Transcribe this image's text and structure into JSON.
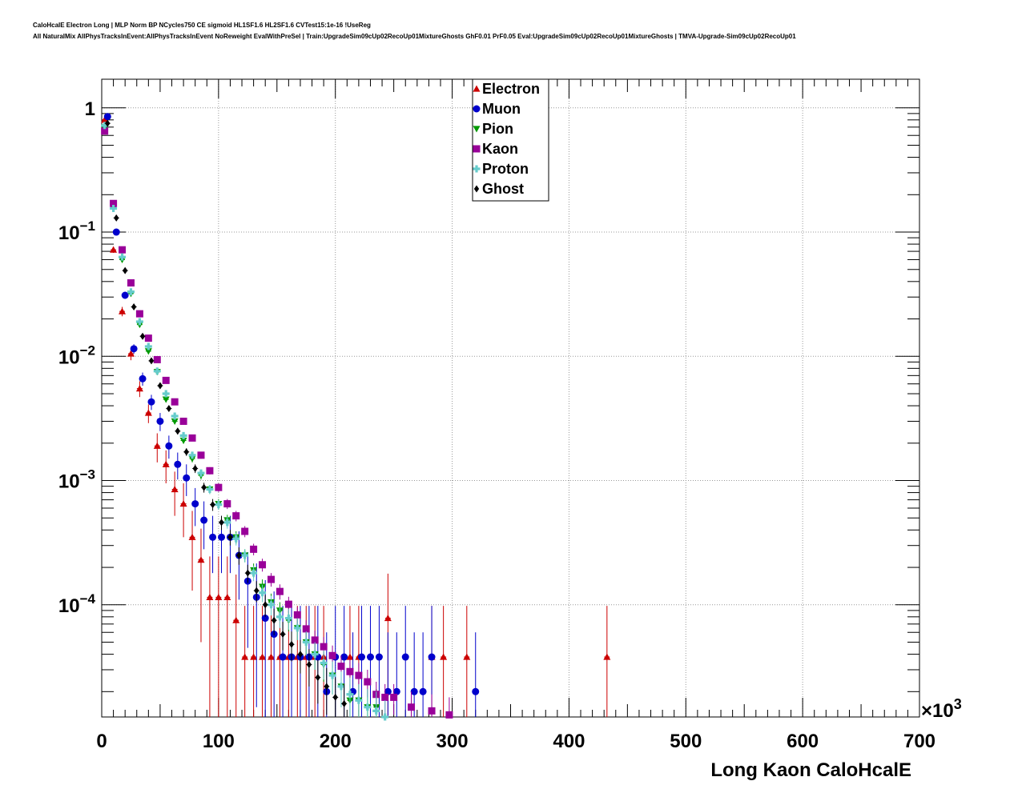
{
  "header": {
    "line1": "CaloHcalE Electron Long | MLP Norm BP NCycles750 CE sigmoid HL1SF1.6 HL2SF1.6 CVTest15:1e-16 !UseReg",
    "line2": "All NaturalMix AllPhysTracksInEvent:AllPhysTracksInEvent NoReweight EvalWithPreSel | Train:UpgradeSim09cUp02RecoUp01MixtureGhosts GhF0.01 PrF0.05 Eval:UpgradeSim09cUp02RecoUp01MixtureGhosts | TMVA-Upgrade-Sim09cUp02RecoUp01"
  },
  "chart_data": {
    "type": "scatter",
    "xlabel": "Long Kaon CaloHcalE",
    "x_multiplier": "×10",
    "x_multiplier_exp": "3",
    "xlim": [
      0,
      700
    ],
    "yscale": "log",
    "ylim": [
      1.25e-05,
      1.7
    ],
    "grid": true,
    "legend_position": "top-center",
    "x_ticks": [
      {
        "value": 0,
        "label": "0"
      },
      {
        "value": 100,
        "label": "100"
      },
      {
        "value": 200,
        "label": "200"
      },
      {
        "value": 300,
        "label": "300"
      },
      {
        "value": 400,
        "label": "400"
      },
      {
        "value": 500,
        "label": "500"
      },
      {
        "value": 600,
        "label": "600"
      },
      {
        "value": 700,
        "label": "700"
      }
    ],
    "y_ticks": [
      {
        "value": 1,
        "label": "1",
        "exp": ""
      },
      {
        "value": 0.1,
        "label": "10",
        "exp": "−1"
      },
      {
        "value": 0.01,
        "label": "10",
        "exp": "−2"
      },
      {
        "value": 0.001,
        "label": "10",
        "exp": "−3"
      },
      {
        "value": 0.0001,
        "label": "10",
        "exp": "−4"
      }
    ],
    "series": [
      {
        "name": "Electron",
        "color": "#cc0000",
        "marker": "triangle-up",
        "x": [
          2.5,
          10,
          17.5,
          25,
          32.5,
          40,
          47.5,
          55,
          62.5,
          70,
          77.5,
          85,
          92.5,
          100,
          107.5,
          115,
          122.5,
          130,
          137.5,
          145,
          152.5,
          160,
          167.5,
          175,
          182.5,
          190,
          212.5,
          220,
          245,
          282.5,
          292.5,
          312.5,
          432.5
        ],
        "y": [
          0.8,
          0.072,
          0.023,
          0.0105,
          0.0055,
          0.0035,
          0.0019,
          0.00135,
          0.00085,
          0.00065,
          0.00035,
          0.00023,
          0.000115,
          0.000115,
          0.000115,
          7.5e-05,
          3.8e-05,
          3.8e-05,
          3.8e-05,
          3.8e-05,
          3.8e-05,
          3.8e-05,
          3.8e-05,
          3.8e-05,
          3.8e-05,
          3.8e-05,
          3.8e-05,
          3.8e-05,
          7.8e-05,
          3.8e-05,
          3.8e-05,
          3.8e-05,
          3.8e-05
        ],
        "yerr": [
          0.02,
          0.004,
          0.002,
          0.0012,
          0.0008,
          0.0006,
          0.0005,
          0.0004,
          0.00033,
          0.0003,
          0.00022,
          0.00018,
          0.00013,
          0.00013,
          0.00013,
          0.0001,
          6e-05,
          6e-05,
          6e-05,
          6e-05,
          6e-05,
          6e-05,
          6e-05,
          6e-05,
          6e-05,
          6e-05,
          6e-05,
          6e-05,
          0.0001,
          6e-05,
          6e-05,
          6e-05,
          6e-05
        ]
      },
      {
        "name": "Muon",
        "color": "#0000cc",
        "marker": "circle",
        "x": [
          5,
          12.5,
          20,
          27.5,
          35,
          42.5,
          50,
          57.5,
          65,
          72.5,
          80,
          87.5,
          95,
          102.5,
          110,
          117.5,
          125,
          132.5,
          140,
          147.5,
          155,
          162.5,
          170,
          177.5,
          185,
          192.5,
          200,
          207.5,
          215,
          222.5,
          230,
          237.5,
          245,
          252.5,
          260,
          267.5,
          275,
          282.5,
          320
        ],
        "y": [
          0.85,
          0.1,
          0.031,
          0.0115,
          0.0066,
          0.0043,
          0.003,
          0.0019,
          0.00135,
          0.00105,
          0.00065,
          0.00048,
          0.00035,
          0.00035,
          0.00035,
          0.00025,
          0.000155,
          0.000115,
          7.8e-05,
          5.8e-05,
          3.8e-05,
          3.8e-05,
          3.8e-05,
          3.8e-05,
          3.8e-05,
          2e-05,
          3.8e-05,
          3.8e-05,
          2e-05,
          3.8e-05,
          3.8e-05,
          3.8e-05,
          2e-05,
          2e-05,
          3.8e-05,
          2e-05,
          2e-05,
          3.8e-05,
          2e-05
        ],
        "yerr": [
          0.02,
          0.005,
          0.002,
          0.001,
          0.0008,
          0.0006,
          0.0005,
          0.0004,
          0.00033,
          0.0003,
          0.00022,
          0.0002,
          0.00017,
          0.00017,
          0.00017,
          0.00014,
          0.00011,
          0.0001,
          8e-05,
          7e-05,
          6e-05,
          6e-05,
          6e-05,
          6e-05,
          6e-05,
          4e-05,
          6e-05,
          6e-05,
          4e-05,
          6e-05,
          6e-05,
          6e-05,
          4e-05,
          4e-05,
          6e-05,
          4e-05,
          4e-05,
          6e-05,
          4e-05
        ]
      },
      {
        "name": "Pion",
        "color": "#009900",
        "marker": "triangle-down",
        "x": [
          2.5,
          10,
          17.5,
          25,
          32.5,
          40,
          47.5,
          55,
          62.5,
          70,
          77.5,
          85,
          92.5,
          100,
          107.5,
          115,
          122.5,
          130,
          137.5,
          145,
          152.5,
          160,
          167.5,
          175,
          182.5,
          190,
          197.5,
          205,
          212.5,
          220,
          227.5,
          235
        ],
        "y": [
          0.7,
          0.16,
          0.06,
          0.032,
          0.018,
          0.011,
          0.0075,
          0.0045,
          0.003,
          0.0021,
          0.0015,
          0.0011,
          0.00085,
          0.00065,
          0.00048,
          0.00035,
          0.00025,
          0.00019,
          0.00014,
          0.000105,
          9e-05,
          7.5e-05,
          6.5e-05,
          5e-05,
          4e-05,
          3.3e-05,
          2.7e-05,
          2.2e-05,
          1.7e-05,
          1.7e-05,
          1.5e-05,
          1.5e-05
        ],
        "yerr": [
          0.01,
          0.003,
          0.002,
          0.001,
          0.0006,
          0.0004,
          0.0003,
          0.0002,
          0.00015,
          0.00012,
          0.0001,
          8e-05,
          7e-05,
          6e-05,
          5e-05,
          4e-05,
          3e-05,
          2.5e-05,
          2e-05,
          1.8e-05,
          1.5e-05,
          1.4e-05,
          1.3e-05,
          1.1e-05,
          1e-05,
          9e-06,
          8e-06,
          7e-06,
          6e-06,
          6e-06,
          6e-06,
          6e-06
        ]
      },
      {
        "name": "Kaon",
        "color": "#990099",
        "marker": "square",
        "x": [
          2.5,
          10,
          17.5,
          25,
          32.5,
          40,
          47.5,
          55,
          62.5,
          70,
          77.5,
          85,
          92.5,
          100,
          107.5,
          115,
          122.5,
          130,
          137.5,
          145,
          152.5,
          160,
          167.5,
          175,
          182.5,
          190,
          197.5,
          205,
          212.5,
          220,
          227.5,
          235,
          242.5,
          250,
          265,
          282.5,
          297.5
        ],
        "y": [
          0.65,
          0.17,
          0.072,
          0.039,
          0.022,
          0.014,
          0.0094,
          0.0064,
          0.0043,
          0.003,
          0.0022,
          0.0016,
          0.0012,
          0.00088,
          0.00065,
          0.00052,
          0.00039,
          0.00028,
          0.00021,
          0.00016,
          0.000128,
          0.000101,
          8.3e-05,
          6.4e-05,
          5.2e-05,
          4.6e-05,
          3.9e-05,
          3.2e-05,
          2.9e-05,
          2.7e-05,
          2.4e-05,
          1.9e-05,
          1.8e-05,
          1.8e-05,
          1.5e-05,
          1.4e-05,
          1.3e-05
        ],
        "yerr": [
          0.01,
          0.003,
          0.002,
          0.001,
          0.0007,
          0.0005,
          0.0004,
          0.0003,
          0.0002,
          0.00015,
          0.00012,
          0.0001,
          8e-05,
          7e-05,
          6e-05,
          5e-05,
          4e-05,
          3e-05,
          2.5e-05,
          2e-05,
          1.8e-05,
          1.5e-05,
          1.3e-05,
          1.1e-05,
          1e-05,
          9e-06,
          8e-06,
          7e-06,
          7e-06,
          7e-06,
          6e-06,
          5e-06,
          5e-06,
          5e-06,
          5e-06,
          5e-06,
          5e-06
        ]
      },
      {
        "name": "Proton",
        "color": "#66cccc",
        "marker": "cross",
        "x": [
          2.5,
          10,
          17.5,
          25,
          32.5,
          40,
          47.5,
          55,
          62.5,
          70,
          77.5,
          85,
          92.5,
          100,
          107.5,
          115,
          122.5,
          130,
          137.5,
          145,
          152.5,
          160,
          167.5,
          175,
          182.5,
          190,
          197.5,
          205,
          212.5,
          220,
          227.5,
          235,
          242.5
        ],
        "y": [
          0.72,
          0.155,
          0.063,
          0.033,
          0.019,
          0.012,
          0.0076,
          0.005,
          0.0033,
          0.0023,
          0.0016,
          0.00115,
          0.00085,
          0.00064,
          0.00046,
          0.00034,
          0.00025,
          0.00018,
          0.000125,
          0.0001,
          8e-05,
          7.8e-05,
          6.5e-05,
          5e-05,
          4e-05,
          3.4e-05,
          2.7e-05,
          2.2e-05,
          1.9e-05,
          1.7e-05,
          1.5e-05,
          1.4e-05,
          1.2e-05
        ],
        "yerr": [
          0.01,
          0.003,
          0.002,
          0.001,
          0.0006,
          0.0004,
          0.0003,
          0.0002,
          0.00015,
          0.00012,
          0.0001,
          8e-05,
          7e-05,
          6e-05,
          5e-05,
          4e-05,
          3e-05,
          2.5e-05,
          2e-05,
          1.8e-05,
          1.5e-05,
          1.5e-05,
          1.3e-05,
          1.1e-05,
          1e-05,
          9e-06,
          8e-06,
          7e-06,
          7e-06,
          6e-06,
          6e-06,
          6e-06,
          5e-06
        ]
      },
      {
        "name": "Ghost",
        "color": "#000000",
        "marker": "diamond",
        "x": [
          5,
          12.5,
          20,
          27.5,
          35,
          42.5,
          50,
          57.5,
          65,
          72.5,
          80,
          87.5,
          95,
          102.5,
          110,
          117.5,
          125,
          132.5,
          140,
          147.5,
          155,
          162.5,
          170,
          177.5,
          185,
          192.5,
          200,
          207.5
        ],
        "y": [
          0.75,
          0.13,
          0.049,
          0.025,
          0.0145,
          0.0092,
          0.0058,
          0.0038,
          0.0025,
          0.0017,
          0.00125,
          0.00088,
          0.00064,
          0.00046,
          0.00035,
          0.00025,
          0.00018,
          0.00013,
          0.0001,
          7.5e-05,
          5.8e-05,
          4.8e-05,
          4e-05,
          3.3e-05,
          2.6e-05,
          2.2e-05,
          1.8e-05,
          1.6e-05
        ],
        "yerr": [
          0.01,
          0.003,
          0.002,
          0.001,
          0.0006,
          0.0004,
          0.0003,
          0.0002,
          0.00015,
          0.00012,
          0.0001,
          8e-05,
          7e-05,
          6e-05,
          5e-05,
          4e-05,
          3e-05,
          2.5e-05,
          2e-05,
          1.8e-05,
          1.5e-05,
          1.3e-05,
          1.2e-05,
          1.1e-05,
          1e-05,
          9e-06,
          8e-06,
          7e-06
        ]
      }
    ]
  }
}
